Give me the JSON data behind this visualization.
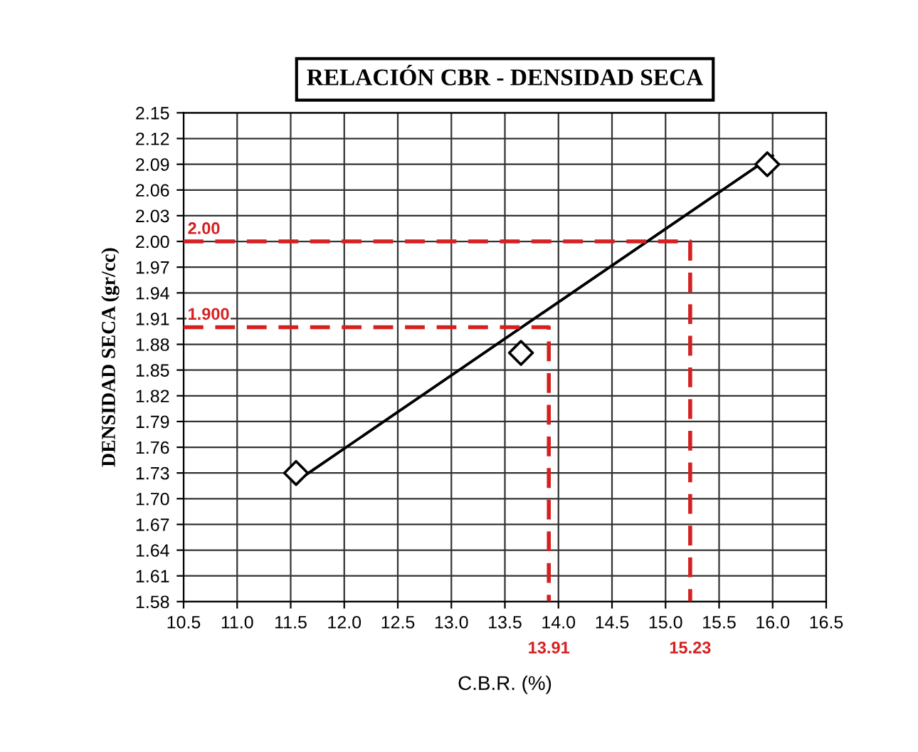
{
  "chart_data": {
    "type": "scatter",
    "title": "RELACIÓN CBR - DENSIDAD SECA",
    "xlabel": "C.B.R. (%)",
    "ylabel": "DENSIDAD SECA (gr/cc)",
    "xlim": [
      10.5,
      16.5
    ],
    "xticks": [
      {
        "value": 10.5,
        "label": "10.5"
      },
      {
        "value": 11.0,
        "label": "11.0"
      },
      {
        "value": 11.5,
        "label": "11.5"
      },
      {
        "value": 12.0,
        "label": "12.0"
      },
      {
        "value": 12.5,
        "label": "12.5"
      },
      {
        "value": 13.0,
        "label": "13.0"
      },
      {
        "value": 13.5,
        "label": "13.5"
      },
      {
        "value": 14.0,
        "label": "14.0"
      },
      {
        "value": 14.5,
        "label": "14.5"
      },
      {
        "value": 15.0,
        "label": "15.0"
      },
      {
        "value": 15.5,
        "label": "15.5"
      },
      {
        "value": 16.0,
        "label": "16.0"
      },
      {
        "value": 16.5,
        "label": "16.5"
      }
    ],
    "ylim": [
      1.58,
      2.15
    ],
    "yticks": [
      1.58,
      1.61,
      1.64,
      1.67,
      {
        "value": 1.7,
        "label": "1.70"
      },
      1.73,
      1.76,
      1.79,
      1.82,
      1.85,
      1.88,
      1.91,
      1.94,
      1.97,
      {
        "value": 2.0,
        "label": "2.00"
      },
      2.03,
      2.06,
      2.09,
      2.12,
      2.15
    ],
    "grid": true,
    "legend": false,
    "series": [
      {
        "marker": "diamond",
        "color": "#000000",
        "x": [
          11.55,
          13.65,
          15.95
        ],
        "values": [
          1.73,
          1.87,
          2.09
        ]
      },
      {
        "type": "line",
        "marker": "none",
        "line_style": "solid",
        "color": "#000000",
        "x": [
          11.55,
          16.0
        ],
        "values": [
          1.72,
          2.1
        ]
      },
      {
        "type": "line",
        "marker": "none",
        "line_style": "dashed",
        "color": "#d62020",
        "x": [
          10.5,
          13.91,
          13.91
        ],
        "values": [
          1.9,
          1.9,
          1.58
        ]
      },
      {
        "type": "line",
        "marker": "none",
        "line_style": "dashed",
        "color": "#d62020",
        "x": [
          10.5,
          15.23,
          15.23
        ],
        "values": [
          2.0,
          2.0,
          1.58
        ]
      }
    ],
    "annotations": [
      {
        "text": "1.900",
        "x": 10.5,
        "y": 1.9
      },
      {
        "text": "2.00",
        "x": 10.5,
        "y": 2.0
      },
      {
        "text": "13.91",
        "x": 13.91,
        "y": 1.58
      },
      {
        "text": "15.23",
        "x": 15.23,
        "y": 1.58
      }
    ]
  }
}
